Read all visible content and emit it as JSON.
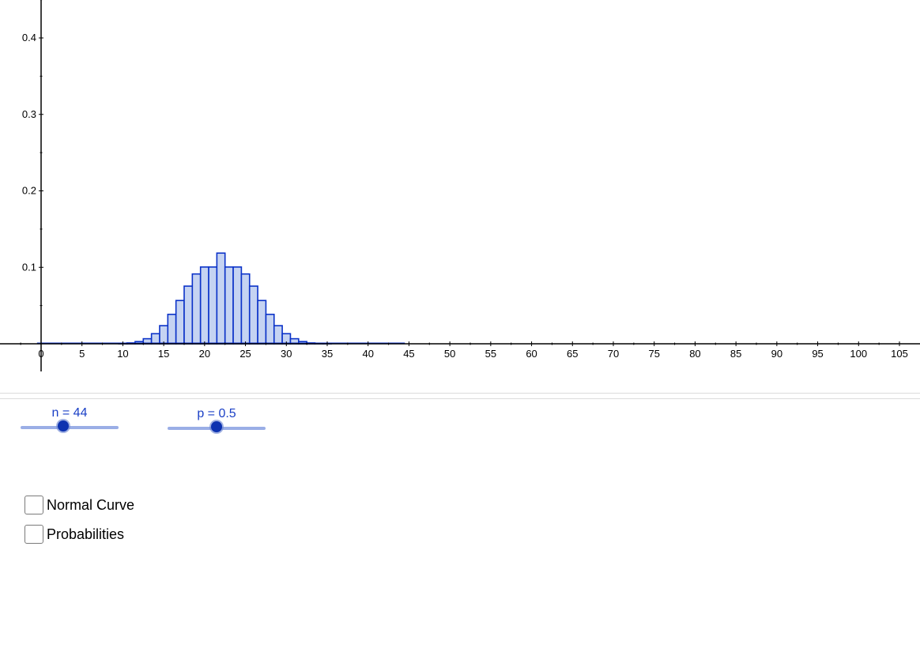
{
  "chart_data": {
    "type": "bar",
    "title": "",
    "xlabel": "",
    "ylabel": "",
    "xlim": [
      -5,
      105.5
    ],
    "ylim": [
      0,
      0.45
    ],
    "x_ticks": [
      0,
      5,
      10,
      15,
      20,
      25,
      30,
      35,
      40,
      45,
      50,
      55,
      60,
      65,
      70,
      75,
      80,
      85,
      90,
      95,
      100,
      105
    ],
    "y_ticks": [
      0.1,
      0.2,
      0.3,
      0.4
    ],
    "grid": false,
    "bar_color": "#c5d3f2",
    "bar_edge_color": "#0b32c8",
    "x": [
      0,
      1,
      2,
      3,
      4,
      5,
      6,
      7,
      8,
      9,
      10,
      11,
      12,
      13,
      14,
      15,
      16,
      17,
      18,
      19,
      20,
      21,
      22,
      23,
      24,
      25,
      26,
      27,
      28,
      29,
      30,
      31,
      32,
      33,
      34,
      35,
      36,
      37,
      38,
      39,
      40,
      41,
      42,
      43,
      44
    ],
    "values": [
      0,
      0,
      0,
      0,
      0,
      0,
      0,
      0,
      0,
      0,
      0.0004,
      0.0011,
      0.0029,
      0.0066,
      0.0132,
      0.0237,
      0.0385,
      0.0566,
      0.0754,
      0.0913,
      0.1004,
      0.1004,
      0.1186,
      0.1004,
      0.1004,
      0.0913,
      0.0754,
      0.0566,
      0.0385,
      0.0237,
      0.0132,
      0.0066,
      0.0029,
      0.0011,
      0.0004,
      0.0001,
      0,
      0,
      0,
      0,
      0,
      0,
      0,
      0,
      0
    ]
  },
  "sliders": {
    "n": {
      "label": "n = 44",
      "value": 44,
      "min": 1,
      "max": 100
    },
    "p": {
      "label": "p = 0.5",
      "value": 0.5,
      "min": 0,
      "max": 1
    }
  },
  "checkboxes": {
    "normal_curve": {
      "label": "Normal Curve",
      "checked": false
    },
    "probabilities": {
      "label": "Probabilities",
      "checked": false
    }
  }
}
